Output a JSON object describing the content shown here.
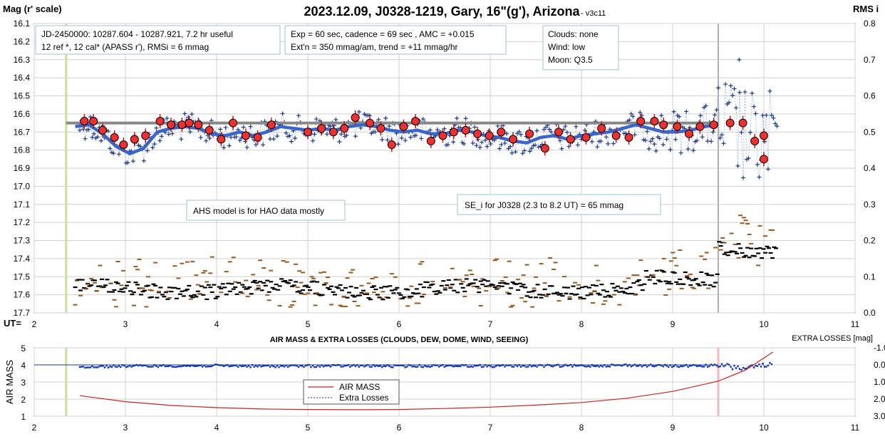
{
  "chart_data": [
    {
      "type": "scatter",
      "title": "2023.12.09, J0328-1219, Gary, 16\"(g'), Arizona",
      "version": "- v3c11",
      "ylabel": "Mag (r' scale)",
      "y2label": "RMS i",
      "xlabel": "UT=",
      "xlim": [
        2,
        11
      ],
      "ylim": [
        16.1,
        17.7
      ],
      "y_inverted": true,
      "y2lim": [
        0,
        0.8
      ],
      "x_ticks": [
        "2",
        "3",
        "4",
        "5",
        "6",
        "7",
        "8",
        "9",
        "10",
        "11"
      ],
      "y_ticks": [
        "16.1",
        "16.2",
        "16.3",
        "16.4",
        "16.5",
        "16.6",
        "16.7",
        "16.8",
        "16.9",
        "17.0",
        "17.1",
        "17.2",
        "17.3",
        "17.4",
        "17.5",
        "17.6",
        "17.7"
      ],
      "y2_ticks": [
        "0.0",
        "0.1",
        "0.2",
        "0.3",
        "0.4",
        "0.5",
        "0.6",
        "0.7",
        "0.8"
      ],
      "grid": true,
      "info_boxes": {
        "jd_line1": "JD-2450000: 10287.604 - 10287.921, 7.2 hr useful",
        "jd_line2": "12 ref *, 12 cal*  (APASS r'), RMSi = 6 mmag",
        "exp_line1": "Exp = 60 sec, cadence = 69 sec , AMC = +0.015",
        "exp_line2": "Ext'n = 350 mmag/am, trend = +11 mmag/hr",
        "clouds": "Clouds: none",
        "wind": "Wind:   low",
        "moon": "Moon:  Q3.5",
        "ahs": "AHS model is for HAO data mostly",
        "se": "SE_i for J0328 (2.3 to 8.2 UT) = 65 mmag"
      },
      "reference_level": 16.65,
      "vertical_markers_ut": [
        2.35,
        9.5
      ],
      "binned_mag": {
        "x": [
          2.55,
          2.65,
          2.75,
          2.88,
          2.98,
          3.1,
          3.22,
          3.38,
          3.5,
          3.62,
          3.7,
          3.8,
          3.92,
          4.05,
          4.18,
          4.32,
          4.45,
          4.6,
          5.0,
          5.15,
          5.28,
          5.4,
          5.52,
          5.68,
          5.8,
          5.92,
          6.05,
          6.18,
          6.35,
          6.48,
          6.6,
          6.73,
          6.86,
          6.99,
          7.12,
          7.25,
          7.43,
          7.6,
          7.75,
          7.88,
          8.05,
          8.22,
          8.38,
          8.52,
          8.65,
          8.8,
          8.9,
          9.05,
          9.18,
          9.3,
          9.45,
          9.63,
          9.77,
          9.9,
          10.0
        ],
        "y": [
          16.64,
          16.64,
          16.69,
          16.73,
          16.77,
          16.74,
          16.72,
          16.64,
          16.66,
          16.66,
          16.65,
          16.66,
          16.69,
          16.74,
          16.65,
          16.72,
          16.73,
          16.66,
          16.7,
          16.68,
          16.7,
          16.68,
          16.62,
          16.65,
          16.68,
          16.77,
          16.67,
          16.64,
          16.75,
          16.72,
          16.7,
          16.69,
          16.71,
          16.72,
          16.7,
          16.74,
          16.71,
          16.79,
          16.7,
          16.74,
          16.73,
          16.68,
          16.72,
          16.73,
          16.64,
          16.64,
          16.66,
          16.67,
          16.71,
          16.67,
          16.66,
          16.65,
          16.65,
          16.75,
          16.72
        ]
      },
      "extra_binned_mag": {
        "x": [
          10.0
        ],
        "y": [
          16.85
        ]
      },
      "model": {
        "x": [
          2.45,
          2.6,
          2.75,
          2.9,
          3.05,
          3.2,
          3.35,
          3.5,
          3.65,
          3.8,
          3.95,
          4.1,
          4.25,
          4.4,
          4.55,
          4.7,
          4.85,
          5.0,
          5.15,
          5.3,
          5.45,
          5.6,
          5.75,
          5.9,
          6.05,
          6.2,
          6.35,
          6.5,
          6.65,
          6.8,
          6.95,
          7.1,
          7.25,
          7.4,
          7.55,
          7.7,
          7.85,
          8.0,
          8.15,
          8.3,
          8.45,
          8.6,
          8.75,
          8.9,
          9.05,
          9.2,
          9.35,
          9.5
        ],
        "y": [
          16.67,
          16.66,
          16.71,
          16.78,
          16.82,
          16.79,
          16.7,
          16.68,
          16.67,
          16.68,
          16.71,
          16.72,
          16.7,
          16.72,
          16.7,
          16.67,
          16.68,
          16.69,
          16.68,
          16.69,
          16.67,
          16.66,
          16.67,
          16.69,
          16.7,
          16.69,
          16.71,
          16.71,
          16.69,
          16.7,
          16.72,
          16.73,
          16.75,
          16.76,
          16.73,
          16.72,
          16.74,
          16.72,
          16.71,
          16.7,
          16.68,
          16.66,
          16.68,
          16.7,
          16.7,
          16.69,
          16.67,
          16.66
        ]
      }
    },
    {
      "type": "line",
      "title": "AIR MASS & EXTRA LOSSES (CLOUDS, DEW, DOME, WIND, SEEING)",
      "ylabel": "AIR MASS",
      "y2label": "EXTRA LOSSES [mag]",
      "xlim": [
        2,
        11
      ],
      "ylim": [
        1,
        5
      ],
      "y2lim": [
        -1.0,
        3.0
      ],
      "x_ticks": [
        "2",
        "3",
        "4",
        "5",
        "6",
        "7",
        "8",
        "9",
        "10",
        "11"
      ],
      "y_ticks": [
        "1",
        "2",
        "3",
        "4",
        "5"
      ],
      "y2_ticks": [
        "-1.0",
        "0.0",
        "1.0",
        "2.0",
        "3.0"
      ],
      "legend": [
        "AIR MASS",
        "Extra Losses"
      ],
      "legend_position": "bottom-center",
      "vertical_markers_ut": [
        2.35,
        9.5
      ],
      "series": [
        {
          "name": "AIR MASS",
          "color": "#cc2222",
          "x": [
            2.5,
            3.0,
            3.5,
            4.0,
            4.5,
            5.0,
            5.5,
            6.0,
            6.5,
            7.0,
            7.5,
            8.0,
            8.5,
            9.0,
            9.5,
            9.8,
            10.1
          ],
          "y": [
            2.2,
            1.85,
            1.63,
            1.5,
            1.42,
            1.39,
            1.38,
            1.39,
            1.45,
            1.53,
            1.65,
            1.8,
            2.05,
            2.45,
            3.05,
            3.7,
            4.75
          ]
        },
        {
          "name": "Extra Losses",
          "color": "#1133aa",
          "x": [
            2.5,
            3.0,
            3.5,
            4.0,
            4.5,
            5.0,
            5.5,
            6.0,
            6.5,
            7.0,
            7.5,
            8.0,
            8.5,
            9.0,
            9.5,
            9.8,
            10.1
          ],
          "y": [
            0.12,
            0.07,
            0.06,
            0.05,
            0.08,
            0.07,
            0.06,
            0.08,
            0.05,
            0.07,
            0.06,
            0.06,
            0.02,
            0.07,
            0.04,
            0.2,
            0.03
          ]
        }
      ]
    }
  ]
}
